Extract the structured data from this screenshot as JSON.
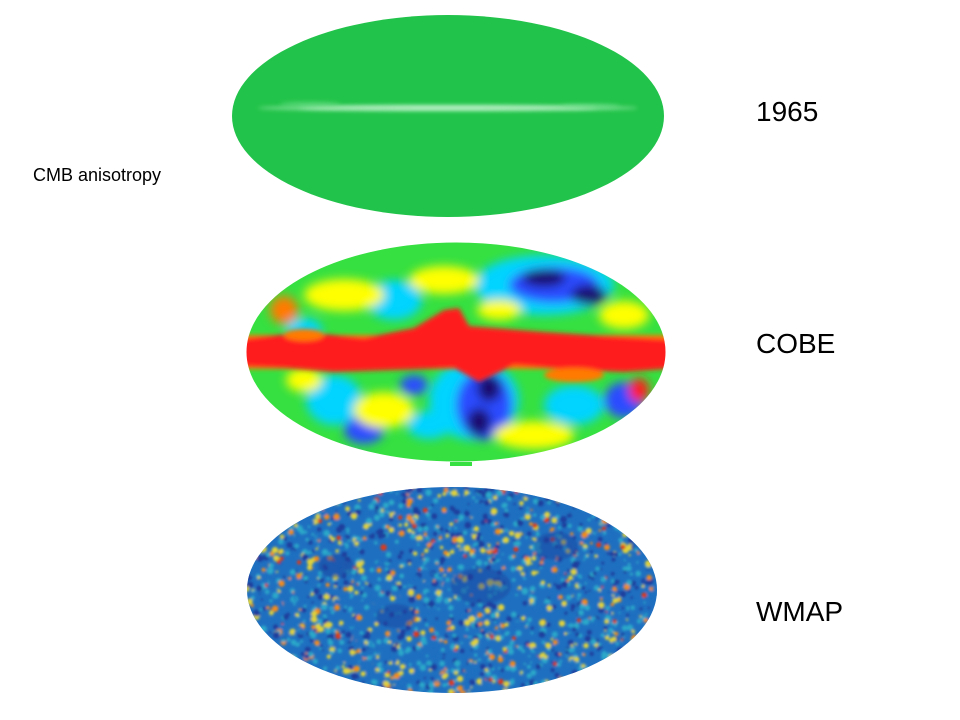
{
  "caption": "CMB anisotropy",
  "maps": [
    {
      "label": "1965",
      "style": "uniform",
      "color": "#22c34a"
    },
    {
      "label": "COBE",
      "style": "dipole-galaxy",
      "colors": [
        "#ff1a1a",
        "#ff7a00",
        "#ffff00",
        "#35e040",
        "#00d4ff",
        "#2a4cff",
        "#1a0a6e"
      ]
    },
    {
      "label": "WMAP",
      "style": "fine-fluctuation",
      "colors": [
        "#1c3d9c",
        "#1f6fc0",
        "#2aa8c9",
        "#e0d23a",
        "#f08a1c",
        "#d93a1a"
      ]
    }
  ]
}
